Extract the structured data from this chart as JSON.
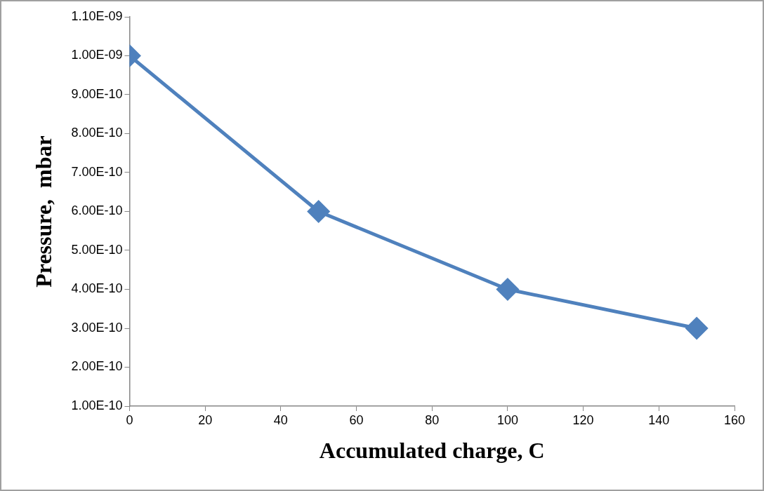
{
  "chart_data": {
    "type": "line",
    "xlabel": "Accumulated charge, C",
    "ylabel": "Pressure,  mbar",
    "x": [
      0,
      50,
      100,
      150
    ],
    "series": [
      {
        "color": "#4f81bd",
        "values": [
          1e-09,
          6e-10,
          4e-10,
          3e-10
        ]
      }
    ],
    "xlim": [
      0,
      160
    ],
    "xticks": [
      0,
      20,
      40,
      60,
      80,
      100,
      120,
      140,
      160
    ],
    "ylim": [
      1e-10,
      1.1e-09
    ],
    "yticks": [
      {
        "value": 1e-10,
        "label": "1.00E-10"
      },
      {
        "value": 2e-10,
        "label": "2.00E-10"
      },
      {
        "value": 3e-10,
        "label": "3.00E-10"
      },
      {
        "value": 4e-10,
        "label": "4.00E-10"
      },
      {
        "value": 5e-10,
        "label": "5.00E-10"
      },
      {
        "value": 6e-10,
        "label": "6.00E-10"
      },
      {
        "value": 7e-10,
        "label": "7.00E-10"
      },
      {
        "value": 8e-10,
        "label": "8.00E-10"
      },
      {
        "value": 9e-10,
        "label": "9.00E-10"
      },
      {
        "value": 1e-09,
        "label": "1.00E-09"
      },
      {
        "value": 1.1e-09,
        "label": "1.10E-09"
      }
    ],
    "grid": false,
    "legend": false,
    "marker": "diamond",
    "line_style": "solid"
  }
}
